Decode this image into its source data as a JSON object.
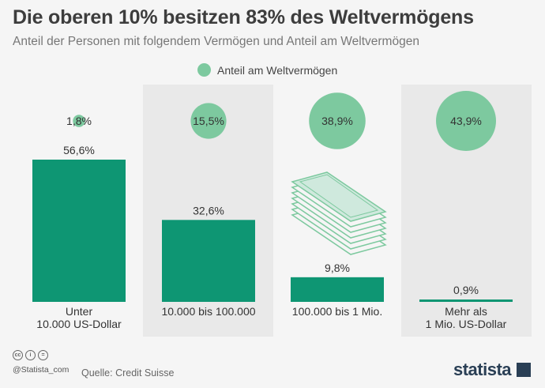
{
  "header": {
    "title": "Die oberen 10% besitzen 83% des Weltvermögens",
    "subtitle": "Anteil der Personen mit folgendem Vermögen und Anteil am Weltvermögen"
  },
  "legend": {
    "label": "Anteil am Weltvermögen",
    "color": "#7dc99f"
  },
  "chart_data": {
    "type": "bar",
    "title": "Die oberen 10% besitzen 83% des Weltvermögens",
    "subtitle": "Anteil der Personen mit folgendem Vermögen und Anteil am Weltvermögen",
    "categories": [
      [
        "Unter",
        "10.000 US-Dollar"
      ],
      [
        "10.000 bis 100.000"
      ],
      [
        "100.000 bis 1 Mio."
      ],
      [
        "Mehr als",
        "1 Mio. US-Dollar"
      ]
    ],
    "series": [
      {
        "values": [
          56.6,
          32.6,
          9.8,
          0.9
        ],
        "labels": [
          "56,6%",
          "32,6%",
          "9,8%",
          "0,9%"
        ],
        "color": "#0e9673"
      },
      {
        "name": "Anteil am Weltvermögen",
        "values": [
          1.8,
          15.5,
          38.9,
          43.9
        ],
        "labels": [
          "1,8%",
          "15,5%",
          "38,9%",
          "43,9%"
        ],
        "color": "#7dc99f"
      }
    ],
    "ylim": [
      0,
      56.6
    ],
    "legend_position": "top-center"
  },
  "footer": {
    "handle": "@Statista_com",
    "source": "Quelle: Credit Suisse",
    "brand": "statista",
    "cc_icons": [
      "cc",
      "i",
      "="
    ]
  },
  "colors": {
    "bar": "#0e9673",
    "circle": "#7dc99f",
    "band": "#e9e9e9",
    "background": "#f5f5f5"
  }
}
